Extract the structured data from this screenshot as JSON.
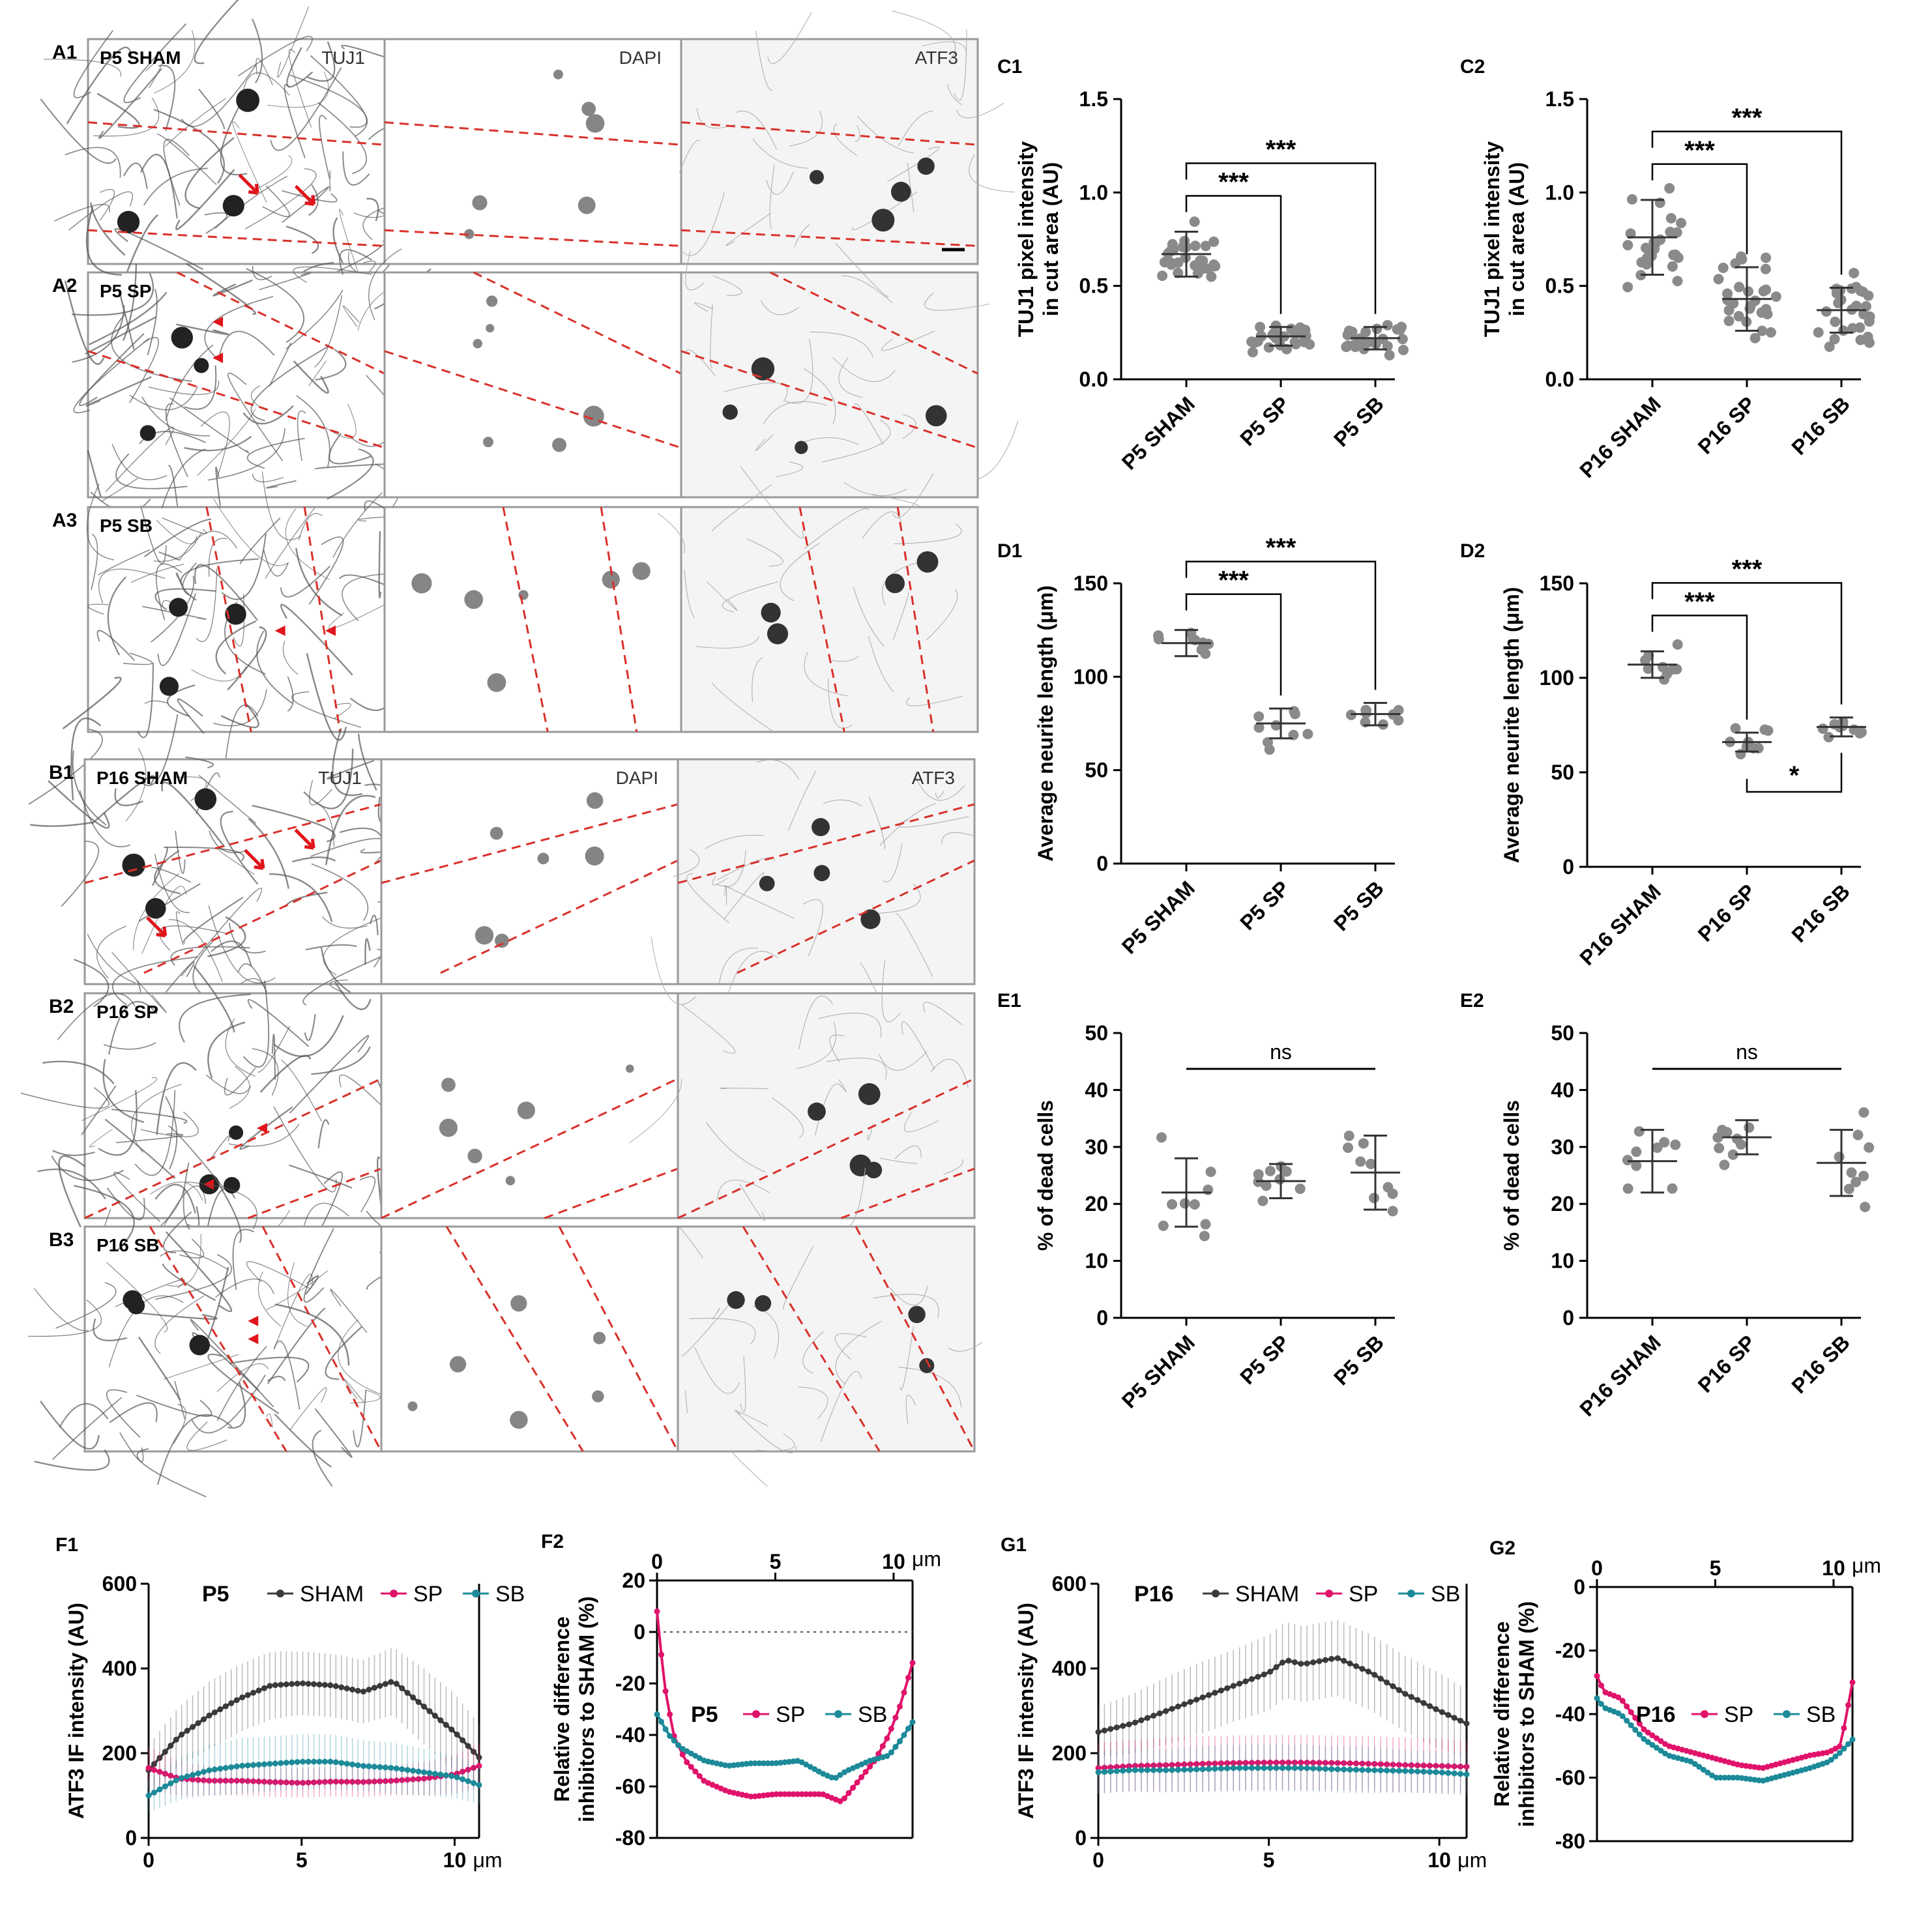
{
  "micrographs": {
    "A1": {
      "panel_label": "A1",
      "sample": "P5 SHAM",
      "channels": [
        "TUJ1",
        "DAPI",
        "ATF3"
      ]
    },
    "A2": {
      "panel_label": "A2",
      "sample": "P5 SP"
    },
    "A3": {
      "panel_label": "A3",
      "sample": "P5 SB"
    },
    "B1": {
      "panel_label": "B1",
      "sample": "P16 SHAM",
      "channels": [
        "TUJ1",
        "DAPI",
        "ATF3"
      ]
    },
    "B2": {
      "panel_label": "B2",
      "sample": "P16 SP"
    },
    "B3": {
      "panel_label": "B3",
      "sample": "P16 SB"
    }
  },
  "colors": {
    "sham": "#3a3a3a",
    "sp": "#e0126a",
    "sb": "#1c8a99",
    "dots": "#8a8a8a",
    "cut_line": "#d9302a",
    "marker": "#e0151b"
  },
  "chart_data": [
    {
      "id": "C1",
      "type": "scatter",
      "ylabel": "TUJ1 pixel intensity in cut area (AU)",
      "categories": [
        "P5 SHAM",
        "P5 SP",
        "P5 SB"
      ],
      "ylim": [
        0,
        1.5
      ],
      "yticks": [
        0.0,
        0.5,
        1.0,
        1.5
      ],
      "tick_labels": [
        "0.0",
        "0.5",
        "1.0",
        "1.5"
      ],
      "series": [
        {
          "name": "P5 SHAM",
          "mean": 0.67,
          "sd": 0.12,
          "n": 28
        },
        {
          "name": "P5 SP",
          "mean": 0.23,
          "sd": 0.05,
          "n": 28
        },
        {
          "name": "P5 SB",
          "mean": 0.22,
          "sd": 0.06,
          "n": 28
        }
      ],
      "comparisons": [
        {
          "from": 0,
          "to": 1,
          "label": "***"
        },
        {
          "from": 0,
          "to": 2,
          "label": "***"
        }
      ]
    },
    {
      "id": "C2",
      "type": "scatter",
      "ylabel": "TUJ1 pixel intensity in cut area (AU)",
      "categories": [
        "P16 SHAM",
        "P16 SP",
        "P16 SB"
      ],
      "ylim": [
        0,
        1.5
      ],
      "yticks": [
        0.0,
        0.5,
        1.0,
        1.5
      ],
      "tick_labels": [
        "0.0",
        "0.5",
        "1.0",
        "1.5"
      ],
      "series": [
        {
          "name": "P16 SHAM",
          "mean": 0.76,
          "sd": 0.2,
          "n": 28
        },
        {
          "name": "P16 SP",
          "mean": 0.43,
          "sd": 0.17,
          "n": 28
        },
        {
          "name": "P16 SB",
          "mean": 0.37,
          "sd": 0.12,
          "n": 28
        }
      ],
      "comparisons": [
        {
          "from": 0,
          "to": 1,
          "label": "***"
        },
        {
          "from": 0,
          "to": 2,
          "label": "***"
        }
      ]
    },
    {
      "id": "D1",
      "type": "scatter",
      "ylabel": "Average neurite length (μm)",
      "categories": [
        "P5 SHAM",
        "P5 SP",
        "P5 SB"
      ],
      "ylim": [
        0,
        150
      ],
      "yticks": [
        0,
        50,
        100,
        150
      ],
      "tick_labels": [
        "0",
        "50",
        "100",
        "150"
      ],
      "series": [
        {
          "name": "P5 SHAM",
          "mean": 118,
          "sd": 7,
          "n": 9
        },
        {
          "name": "P5 SP",
          "mean": 75,
          "sd": 8,
          "n": 9
        },
        {
          "name": "P5 SB",
          "mean": 80,
          "sd": 6,
          "n": 9
        }
      ],
      "comparisons": [
        {
          "from": 0,
          "to": 1,
          "label": "***"
        },
        {
          "from": 0,
          "to": 2,
          "label": "***"
        }
      ]
    },
    {
      "id": "D2",
      "type": "scatter",
      "ylabel": "Average neurite length (μm)",
      "categories": [
        "P16 SHAM",
        "P16 SP",
        "P16 SB"
      ],
      "ylim": [
        0,
        150
      ],
      "yticks": [
        0,
        50,
        100,
        150
      ],
      "tick_labels": [
        "0",
        "50",
        "100",
        "150"
      ],
      "series": [
        {
          "name": "P16 SHAM",
          "mean": 107,
          "sd": 7,
          "n": 9
        },
        {
          "name": "P16 SP",
          "mean": 66,
          "sd": 5,
          "n": 9
        },
        {
          "name": "P16 SB",
          "mean": 74,
          "sd": 5,
          "n": 9
        }
      ],
      "comparisons": [
        {
          "from": 0,
          "to": 1,
          "label": "***"
        },
        {
          "from": 0,
          "to": 2,
          "label": "***"
        },
        {
          "from": 1,
          "to": 2,
          "label": "*",
          "below": true
        }
      ]
    },
    {
      "id": "E1",
      "type": "scatter",
      "ylabel": "% of dead cells",
      "categories": [
        "P5 SHAM",
        "P5 SP",
        "P5 SB"
      ],
      "ylim": [
        0,
        50
      ],
      "yticks": [
        0,
        10,
        20,
        30,
        40,
        50
      ],
      "tick_labels": [
        "0",
        "10",
        "20",
        "30",
        "40",
        "50"
      ],
      "series": [
        {
          "name": "P5 SHAM",
          "mean": 22,
          "sd": 6,
          "n": 9
        },
        {
          "name": "P5 SP",
          "mean": 24,
          "sd": 3,
          "n": 9
        },
        {
          "name": "P5 SB",
          "mean": 25.5,
          "sd": 6.5,
          "n": 9
        }
      ],
      "ns_label": "ns"
    },
    {
      "id": "E2",
      "type": "scatter",
      "ylabel": "% of dead cells",
      "categories": [
        "P16 SHAM",
        "P16 SP",
        "P16 SB"
      ],
      "ylim": [
        0,
        50
      ],
      "yticks": [
        0,
        10,
        20,
        30,
        40,
        50
      ],
      "tick_labels": [
        "0",
        "10",
        "20",
        "30",
        "40",
        "50"
      ],
      "series": [
        {
          "name": "P16 SHAM",
          "mean": 27.5,
          "sd": 5.5,
          "n": 9
        },
        {
          "name": "P16 SP",
          "mean": 31.7,
          "sd": 3,
          "n": 9
        },
        {
          "name": "P16 SB",
          "mean": 27.2,
          "sd": 5.8,
          "n": 9
        }
      ],
      "ns_label": "ns"
    },
    {
      "id": "F1",
      "type": "line",
      "title": "P5",
      "ylabel": "ATF3 IF intensity (AU)",
      "xlim": [
        0,
        10.8
      ],
      "ylim": [
        0,
        600
      ],
      "xticks": [
        0,
        5,
        10
      ],
      "xtick_labels": [
        "0",
        "5",
        "10"
      ],
      "x_unit": "μm",
      "yticks": [
        0,
        200,
        400,
        600
      ],
      "ytick_labels": [
        "0",
        "200",
        "400",
        "600"
      ],
      "series": [
        {
          "name": "SHAM",
          "x": [
            0,
            1,
            2,
            3,
            4,
            5,
            6,
            7,
            8,
            9,
            10,
            10.8
          ],
          "values": [
            160,
            240,
            290,
            330,
            360,
            365,
            360,
            345,
            370,
            310,
            250,
            190
          ],
          "err": [
            60,
            70,
            80,
            80,
            80,
            75,
            75,
            75,
            80,
            90,
            90,
            80
          ]
        },
        {
          "name": "SP",
          "x": [
            0,
            1,
            2,
            3,
            4,
            5,
            6,
            7,
            8,
            9,
            10,
            10.8
          ],
          "values": [
            165,
            140,
            135,
            135,
            132,
            130,
            133,
            132,
            135,
            140,
            150,
            170
          ],
          "err": [
            50,
            40,
            35,
            35,
            35,
            35,
            35,
            35,
            35,
            40,
            45,
            55
          ]
        },
        {
          "name": "SB",
          "x": [
            0,
            1,
            2,
            3,
            4,
            5,
            6,
            7,
            8,
            9,
            10,
            10.8
          ],
          "values": [
            100,
            140,
            160,
            170,
            175,
            180,
            180,
            170,
            165,
            155,
            145,
            125
          ],
          "err": [
            40,
            50,
            60,
            65,
            65,
            65,
            65,
            60,
            60,
            55,
            50,
            45
          ]
        }
      ]
    },
    {
      "id": "F2",
      "type": "line",
      "title": "P5",
      "ylabel": "Relative difference inhibitors to SHAM (%)",
      "xlim": [
        0,
        10.8
      ],
      "ylim": [
        -80,
        20
      ],
      "xticks": [
        0,
        5,
        10
      ],
      "xtick_labels": [
        "0",
        "5",
        "10"
      ],
      "x_unit": "μm",
      "yticks": [
        20,
        0,
        -20,
        -40,
        -60,
        -80
      ],
      "ytick_labels": [
        "20",
        "0",
        "-20",
        "-40",
        "-60",
        "-80"
      ],
      "series": [
        {
          "name": "SP",
          "x": [
            0,
            0.3,
            0.7,
            1.2,
            2,
            3,
            4,
            5,
            6,
            7,
            7.8,
            8.5,
            9.2,
            9.8,
            10.3,
            10.8
          ],
          "values": [
            8,
            -20,
            -40,
            -50,
            -58,
            -62,
            -64,
            -63,
            -63,
            -63,
            -66,
            -58,
            -50,
            -40,
            -28,
            -12
          ]
        },
        {
          "name": "SB",
          "x": [
            0,
            0.5,
            1,
            2,
            3,
            4,
            5,
            6,
            7,
            7.5,
            8,
            9,
            9.8,
            10.3,
            10.8
          ],
          "values": [
            -32,
            -40,
            -45,
            -50,
            -52,
            -51,
            -51,
            -50,
            -55,
            -57,
            -54,
            -50,
            -48,
            -42,
            -35
          ]
        }
      ]
    },
    {
      "id": "G1",
      "type": "line",
      "title": "P16",
      "ylabel": "ATF3 IF intensity (AU)",
      "xlim": [
        0,
        10.8
      ],
      "ylim": [
        0,
        600
      ],
      "xticks": [
        0,
        5,
        10
      ],
      "xtick_labels": [
        "0",
        "5",
        "10"
      ],
      "x_unit": "μm",
      "yticks": [
        0,
        200,
        400,
        600
      ],
      "ytick_labels": [
        "0",
        "200",
        "400",
        "600"
      ],
      "series": [
        {
          "name": "SHAM",
          "x": [
            0,
            1,
            2,
            3,
            4,
            5,
            5.5,
            6,
            7,
            8,
            9,
            10,
            10.8
          ],
          "values": [
            250,
            270,
            300,
            330,
            360,
            390,
            420,
            410,
            425,
            390,
            340,
            300,
            270
          ],
          "err": [
            60,
            70,
            80,
            85,
            85,
            90,
            90,
            90,
            90,
            90,
            90,
            90,
            80
          ]
        },
        {
          "name": "SP",
          "x": [
            0,
            1,
            2,
            3,
            4,
            5,
            6,
            7,
            8,
            9,
            10,
            10.8
          ],
          "values": [
            165,
            170,
            172,
            175,
            177,
            178,
            178,
            177,
            175,
            172,
            170,
            168
          ],
          "err": [
            60,
            60,
            65,
            65,
            65,
            65,
            65,
            65,
            65,
            65,
            65,
            60
          ]
        },
        {
          "name": "SB",
          "x": [
            0,
            1,
            2,
            3,
            4,
            5,
            6,
            7,
            8,
            9,
            10,
            10.8
          ],
          "values": [
            155,
            160,
            160,
            162,
            165,
            165,
            165,
            162,
            160,
            158,
            155,
            150
          ],
          "err": [
            50,
            50,
            50,
            55,
            55,
            55,
            55,
            55,
            55,
            50,
            50,
            50
          ]
        }
      ]
    },
    {
      "id": "G2",
      "type": "line",
      "title": "P16",
      "ylabel": "Relative difference inhibitors to SHAM (%)",
      "xlim": [
        0,
        10.8
      ],
      "ylim": [
        -80,
        0
      ],
      "xticks": [
        0,
        5,
        10
      ],
      "xtick_labels": [
        "0",
        "5",
        "10"
      ],
      "x_unit": "μm",
      "yticks": [
        0,
        -20,
        -40,
        -60,
        -80
      ],
      "ytick_labels": [
        "0",
        "-20",
        "-40",
        "-60",
        "-80"
      ],
      "series": [
        {
          "name": "SP",
          "x": [
            0,
            0.3,
            1,
            2,
            3,
            4,
            5,
            6,
            7,
            8,
            9,
            9.8,
            10.3,
            10.8
          ],
          "values": [
            -28,
            -33,
            -35,
            -45,
            -50,
            -52,
            -54,
            -56,
            -57,
            -55,
            -53,
            -52,
            -50,
            -30
          ]
        },
        {
          "name": "SB",
          "x": [
            0,
            0.3,
            1,
            2,
            3,
            4,
            5,
            6,
            7,
            8,
            9,
            9.8,
            10.3,
            10.8
          ],
          "values": [
            -35,
            -38,
            -40,
            -48,
            -53,
            -55,
            -60,
            -60,
            -61,
            -59,
            -57,
            -55,
            -52,
            -48
          ]
        }
      ]
    }
  ]
}
